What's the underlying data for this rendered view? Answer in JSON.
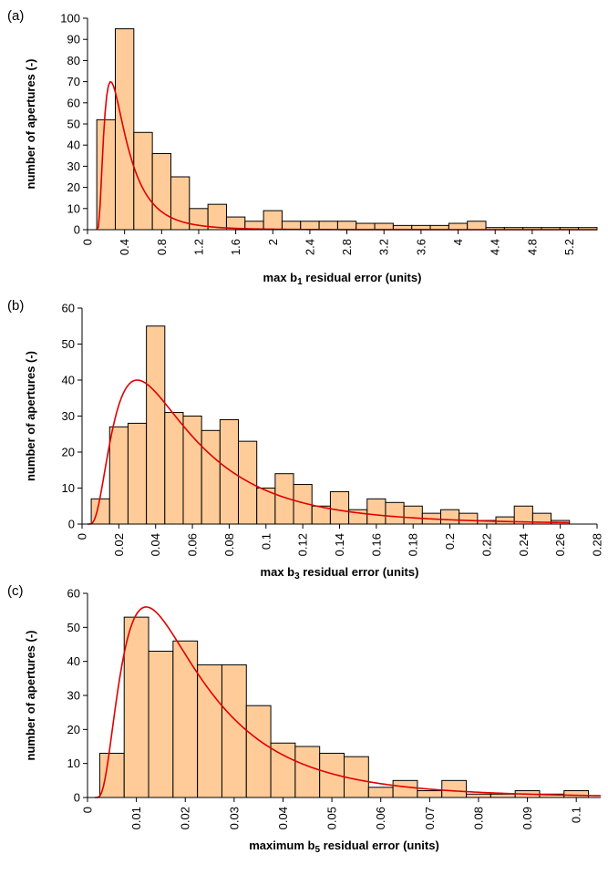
{
  "colors": {
    "bar_fill": "#ffcc99",
    "bar_stroke": "#000000",
    "fit_line": "#e00000"
  },
  "chart_data": [
    {
      "type": "bar",
      "panel_label": "(a)",
      "title": "",
      "xlabel_pre": "max b",
      "xlabel_sub": "1",
      "xlabel_post": " residual error (units)",
      "ylabel": "number of apertures (-)",
      "ylim": [
        0,
        100
      ],
      "yticks": [
        0,
        10,
        20,
        30,
        40,
        50,
        60,
        70,
        80,
        90,
        100
      ],
      "xlim": [
        0,
        5.5
      ],
      "xticks": [
        "0",
        "0.4",
        "0.8",
        "1.2",
        "1.6",
        "2",
        "2.4",
        "2.8",
        "3.2",
        "3.6",
        "4",
        "4.4",
        "4.8",
        "5.2"
      ],
      "bin_start": 0.1,
      "bin_width": 0.2,
      "values": [
        52,
        95,
        46,
        36,
        25,
        10,
        12,
        6,
        4,
        9,
        4,
        4,
        4,
        4,
        3,
        3,
        2,
        2,
        2,
        3,
        4,
        1,
        1,
        1,
        1,
        1,
        1
      ],
      "fit": {
        "type": "lognormal",
        "x_start": 0.1,
        "x_end": 5.5,
        "shift": 0.1,
        "mode": 0.25,
        "peak": 70
      }
    },
    {
      "type": "bar",
      "panel_label": "(b)",
      "title": "",
      "xlabel_pre": "max b",
      "xlabel_sub": "3",
      "xlabel_post": " residual error (units)",
      "ylabel": "number of apertures (-)",
      "ylim": [
        0,
        60
      ],
      "yticks": [
        0,
        10,
        20,
        30,
        40,
        50,
        60
      ],
      "xlim": [
        0,
        0.28
      ],
      "xticks": [
        "0",
        "0.02",
        "0.04",
        "0.06",
        "0.08",
        "0.1",
        "0.12",
        "0.14",
        "0.16",
        "0.18",
        "0.2",
        "0.22",
        "0.24",
        "0.26",
        "0.28"
      ],
      "bin_start": 0.005,
      "bin_width": 0.01,
      "values": [
        7,
        27,
        28,
        55,
        31,
        30,
        26,
        29,
        23,
        10,
        14,
        11,
        5,
        9,
        4,
        7,
        6,
        5,
        3,
        4,
        3,
        1,
        2,
        5,
        3,
        1
      ],
      "fit": {
        "type": "lognormal",
        "x_start": 0.003,
        "x_end": 0.265,
        "shift": 0.003,
        "mode": 0.03,
        "peak": 40
      }
    },
    {
      "type": "bar",
      "panel_label": "(c)",
      "title": "",
      "xlabel_pre": "maximum b",
      "xlabel_sub": "5",
      "xlabel_post": " residual error (units)",
      "ylabel": "number of apertures (-)",
      "ylim": [
        0,
        60
      ],
      "yticks": [
        0,
        10,
        20,
        30,
        40,
        50,
        60
      ],
      "xlim": [
        0,
        0.105
      ],
      "xticks": [
        "0",
        "0.01",
        "0.02",
        "0.03",
        "0.04",
        "0.05",
        "0.06",
        "0.07",
        "0.08",
        "0.09",
        "0.1"
      ],
      "bin_start": 0.0025,
      "bin_width": 0.005,
      "values": [
        13,
        53,
        43,
        46,
        39,
        39,
        27,
        16,
        15,
        13,
        12,
        3,
        5,
        2,
        5,
        1,
        1,
        2,
        1,
        2
      ],
      "fit": {
        "type": "lognormal",
        "x_start": 0.0015,
        "x_end": 0.105,
        "shift": 0.0015,
        "mode": 0.012,
        "peak": 56
      }
    }
  ]
}
